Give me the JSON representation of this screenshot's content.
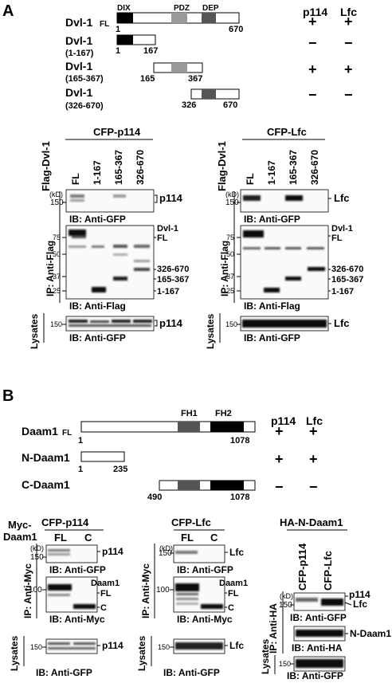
{
  "panel_labels": [
    "A",
    "B"
  ],
  "panelA": {
    "constructs": [
      {
        "name": "Dvl-1",
        "suffix": "FL",
        "start": "1",
        "end": "670",
        "p114": "+",
        "lfc": "+"
      },
      {
        "name": "Dvl-1",
        "range": "(1-167)",
        "start": "1",
        "end": "167",
        "p114": "−",
        "lfc": "−"
      },
      {
        "name": "Dvl-1",
        "range": "(165-367)",
        "start": "165",
        "end": "367",
        "p114": "+",
        "lfc": "+"
      },
      {
        "name": "Dvl-1",
        "range": "(326-670)",
        "start": "326",
        "end": "670",
        "p114": "−",
        "lfc": "−"
      }
    ],
    "domains": [
      "DIX",
      "PDZ",
      "DEP"
    ],
    "col_headers": [
      "p114",
      "Lfc"
    ],
    "blots": [
      {
        "title": "CFP-p114",
        "vlabel": "Flag-Dvl-1",
        "lanes": [
          "FL",
          "1-167",
          "165-367",
          "326-670"
        ],
        "kd": "(kD)",
        "ip_label": "IP: Anti-Flag",
        "lysate_label": "Lysates",
        "top": {
          "marker": "150",
          "band": "p114",
          "ib": "IB: Anti-GFP"
        },
        "mid": {
          "markers": [
            "75",
            "50",
            "37",
            "25"
          ],
          "bands": [
            "Dvl-1",
            "FL",
            "326-670",
            "165-367",
            "1-167"
          ],
          "ib": "IB: Anti-Flag"
        },
        "lys": {
          "marker": "150",
          "band": "p114",
          "ib": "IB: Anti-GFP"
        }
      },
      {
        "title": "CFP-Lfc",
        "vlabel": "Flag-Dvl-1",
        "lanes": [
          "FL",
          "1-167",
          "165-367",
          "326-670"
        ],
        "kd": "(kD)",
        "ip_label": "IP: Anti-Flag",
        "lysate_label": "Lysates",
        "top": {
          "marker": "150",
          "band": "Lfc",
          "ib": "IB: Anti-GFP"
        },
        "mid": {
          "markers": [
            "75",
            "50",
            "37",
            "25"
          ],
          "bands": [
            "Dvl-1",
            "FL",
            "326-670",
            "165-367",
            "1-167"
          ],
          "ib": "IB: Anti-Flag"
        },
        "lys": {
          "marker": "150",
          "band": "Lfc",
          "ib": "IB: Anti-GFP"
        }
      }
    ]
  },
  "panelB": {
    "constructs": [
      {
        "name": "Daam1",
        "suffix": "FL",
        "start": "1",
        "end": "1078",
        "p114": "+",
        "lfc": "+"
      },
      {
        "name": "N-Daam1",
        "start": "1",
        "end": "235",
        "p114": "+",
        "lfc": "+"
      },
      {
        "name": "C-Daam1",
        "start": "490",
        "end": "1078",
        "p114": "−",
        "lfc": "−"
      }
    ],
    "domains": [
      "FH1",
      "FH2"
    ],
    "col_headers": [
      "p114",
      "Lfc"
    ],
    "blots": [
      {
        "title": "CFP-p114",
        "vlabel": [
          "Myc-",
          "Daam1"
        ],
        "lanes": [
          "FL",
          "C"
        ],
        "kd": "(kD)",
        "ip_label": "IP: Anti-Myc",
        "lysate_label": "Lysates",
        "top": {
          "marker": "150",
          "band": "p114",
          "ib": "IB: Anti-GFP"
        },
        "mid": {
          "marker": "100",
          "bands": [
            "Daam1",
            "FL",
            "C"
          ],
          "ib": "IB: Anti-Myc"
        },
        "lys": {
          "marker": "150",
          "band": "p114",
          "ib": "IB: Anti-GFP"
        }
      },
      {
        "title": "CFP-Lfc",
        "lanes": [
          "FL",
          "C"
        ],
        "kd": "(kD)",
        "ip_label": "IP: Anti-Myc",
        "lysate_label": "Lysates",
        "top": {
          "marker": "150",
          "band": "Lfc",
          "ib": "IB: Anti-GFP"
        },
        "mid": {
          "marker": "100",
          "bands": [
            "Daam1",
            "FL",
            "C"
          ],
          "ib": "IB: Anti-Myc"
        },
        "lys": {
          "marker": "150",
          "band": "Lfc",
          "ib": "IB: Anti-GFP"
        }
      },
      {
        "title": "HA-N-Daam1",
        "lanes": [
          "CFP-p114",
          "CFP-Lfc"
        ],
        "kd": "(kD)",
        "ip_label": "IP: Anti-HA",
        "lysate_label": "Lysates",
        "top": {
          "marker": "150",
          "bands": [
            "p114",
            "Lfc"
          ],
          "ib": "IB: Anti-GFP"
        },
        "mid": {
          "band": "N-Daam1",
          "ib": "IB: Anti-HA"
        },
        "lys": {
          "marker": "150",
          "ib": "IB: Anti-GFP"
        }
      }
    ]
  }
}
